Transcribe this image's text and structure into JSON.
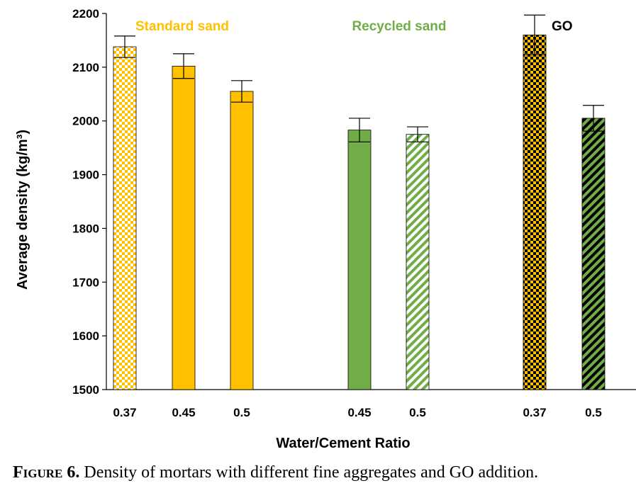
{
  "chart_data": {
    "type": "bar",
    "ylabel": "Average density (kg/m³)",
    "xlabel": "Water/Cement Ratio",
    "ylim": [
      1500,
      2200
    ],
    "yticks": [
      1500,
      1600,
      1700,
      1800,
      1900,
      2000,
      2100,
      2200
    ],
    "groups": [
      {
        "label": "Standard sand",
        "color": "#ffc000"
      },
      {
        "label": "Recycled sand",
        "color": "#70ad47"
      },
      {
        "label": "GO",
        "color": "#000000"
      }
    ],
    "bars": [
      {
        "group": 0,
        "category": "0.37",
        "value": 2138,
        "error": 20,
        "color": "#ffc000",
        "pattern": "checker-light"
      },
      {
        "group": 0,
        "category": "0.45",
        "value": 2102,
        "error": 23,
        "color": "#ffc000",
        "pattern": "solid"
      },
      {
        "group": 0,
        "category": "0.5",
        "value": 2055,
        "error": 20,
        "color": "#ffc000",
        "pattern": "solid"
      },
      {
        "group": 1,
        "category": "0.45",
        "value": 1983,
        "error": 22,
        "color": "#70ad47",
        "pattern": "solid"
      },
      {
        "group": 1,
        "category": "0.5",
        "value": 1975,
        "error": 14,
        "color": "#70ad47",
        "pattern": "diagonal-light"
      },
      {
        "group": 2,
        "category": "0.37",
        "value": 2160,
        "error": 37,
        "color": "#ffc000",
        "pattern": "checker-dark"
      },
      {
        "group": 2,
        "category": "0.5",
        "value": 2005,
        "error": 24,
        "color": "#70ad47",
        "pattern": "diagonal-dark"
      }
    ]
  },
  "caption": {
    "figure_label": "Figure 6.",
    "text": " Density of mortars with different fine aggregates and GO addition."
  }
}
